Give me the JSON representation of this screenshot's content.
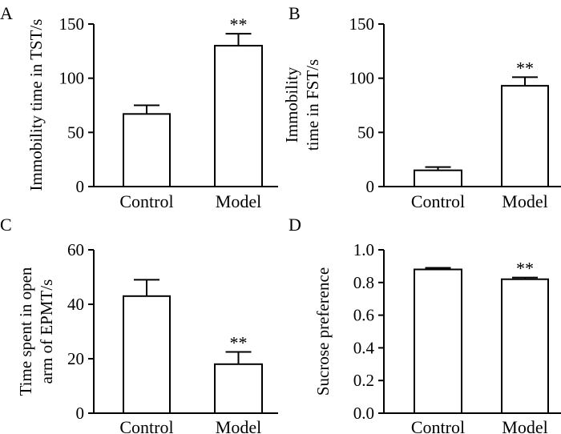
{
  "chart_data": [
    {
      "type": "bar",
      "panel_label": "A",
      "categories": [
        "Control",
        "Model"
      ],
      "values": [
        67,
        130
      ],
      "errors": [
        8,
        11
      ],
      "significance": [
        "",
        "**"
      ],
      "ylabel_lines": [
        "Immobility time in TST/s"
      ],
      "ylim": [
        0,
        150
      ],
      "yticks": [
        "0",
        "50",
        "100",
        "150"
      ],
      "ytick_values": [
        0,
        50,
        100,
        150
      ]
    },
    {
      "type": "bar",
      "panel_label": "B",
      "categories": [
        "Control",
        "Model"
      ],
      "values": [
        15,
        93
      ],
      "errors": [
        3,
        8
      ],
      "significance": [
        "",
        "**"
      ],
      "ylabel_lines": [
        "Immobility",
        "time in FST/s"
      ],
      "ylim": [
        0,
        150
      ],
      "yticks": [
        "0",
        "50",
        "100",
        "150"
      ],
      "ytick_values": [
        0,
        50,
        100,
        150
      ]
    },
    {
      "type": "bar",
      "panel_label": "C",
      "categories": [
        "Control",
        "Model"
      ],
      "values": [
        43,
        18
      ],
      "errors": [
        6,
        4.5
      ],
      "significance": [
        "",
        "**"
      ],
      "ylabel_lines": [
        "Time spent in open",
        "arm of EPMT/s"
      ],
      "ylim": [
        0,
        60
      ],
      "yticks": [
        "0",
        "20",
        "40",
        "60"
      ],
      "ytick_values": [
        0,
        20,
        40,
        60
      ]
    },
    {
      "type": "bar",
      "panel_label": "D",
      "categories": [
        "Control",
        "Model"
      ],
      "values": [
        0.88,
        0.82
      ],
      "errors": [
        0.01,
        0.01
      ],
      "significance": [
        "",
        "**"
      ],
      "ylabel_lines": [
        "Sucrose preference"
      ],
      "ylim": [
        0,
        1.0
      ],
      "yticks": [
        "0.0",
        "0.2",
        "0.4",
        "0.6",
        "0.8",
        "1.0"
      ],
      "ytick_values": [
        0,
        0.2,
        0.4,
        0.6,
        0.8,
        1.0
      ]
    }
  ]
}
